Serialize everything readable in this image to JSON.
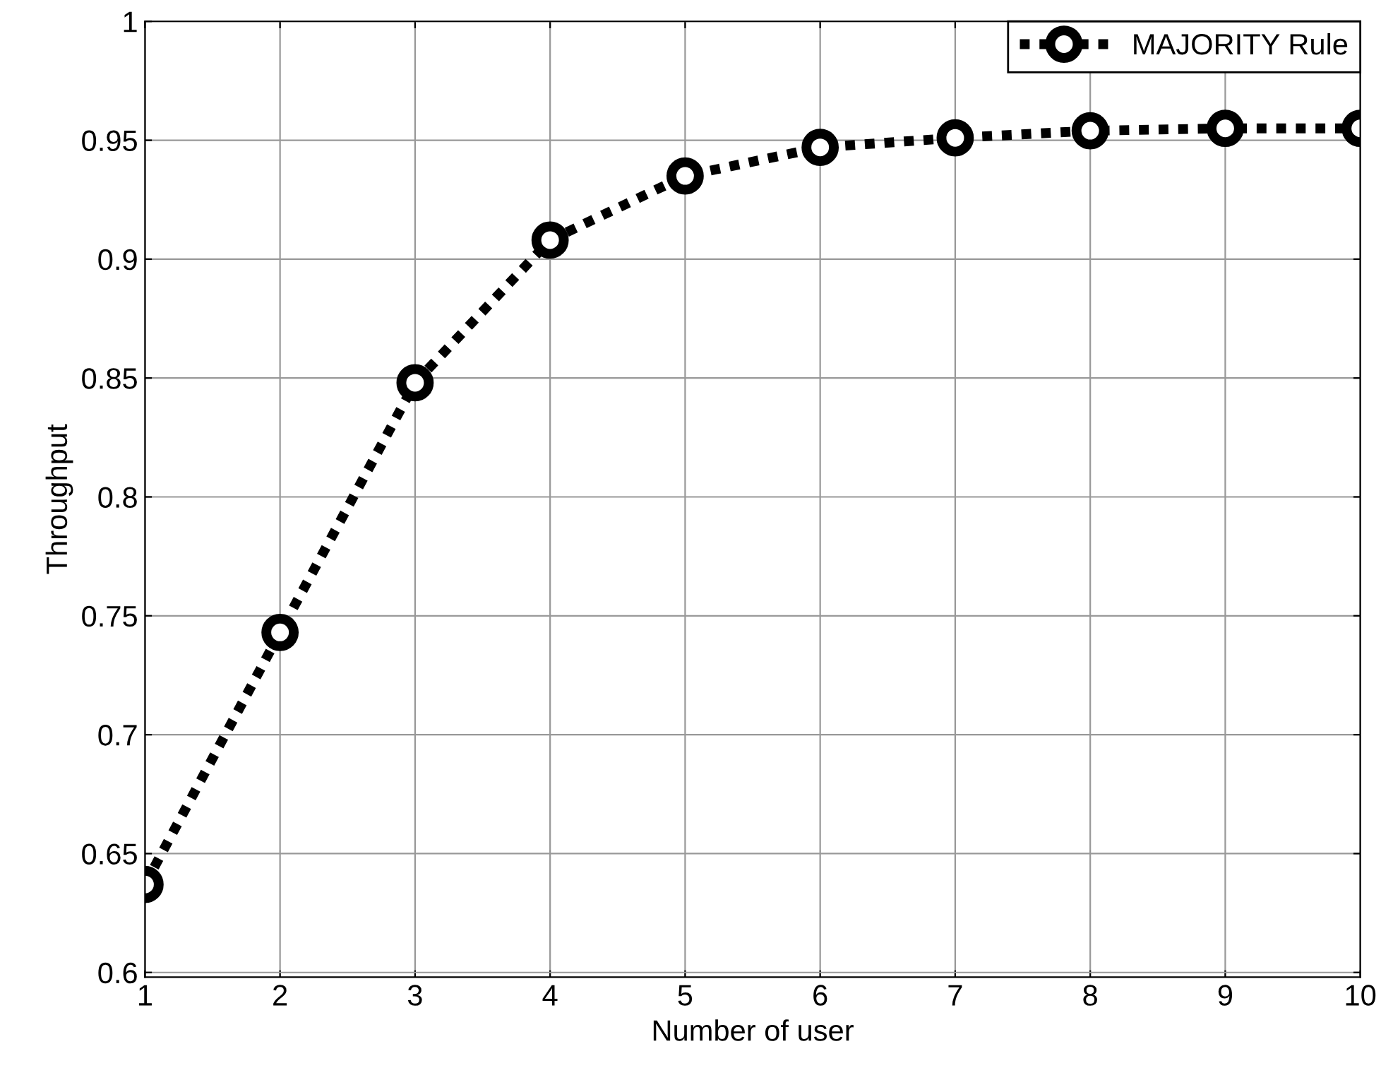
{
  "chart_data": {
    "type": "line",
    "xlabel": "Number of user",
    "ylabel": "Throughput",
    "x": [
      1,
      2,
      3,
      4,
      5,
      6,
      7,
      8,
      9,
      10
    ],
    "series": [
      {
        "name": "MAJORITY Rule",
        "color": "#000000",
        "values": [
          0.637,
          0.743,
          0.848,
          0.908,
          0.935,
          0.947,
          0.951,
          0.954,
          0.955,
          0.955
        ]
      }
    ],
    "xlim": [
      1,
      10
    ],
    "xticks": [
      1,
      2,
      3,
      4,
      5,
      6,
      7,
      8,
      9,
      10
    ],
    "ylim": [
      0.598,
      1
    ],
    "yticks": [
      0.6,
      0.65,
      0.7,
      0.75,
      0.8,
      0.85,
      0.9,
      0.95,
      1
    ],
    "grid": true,
    "legend": "top right",
    "marker": "circle",
    "line_style": "dotted"
  }
}
